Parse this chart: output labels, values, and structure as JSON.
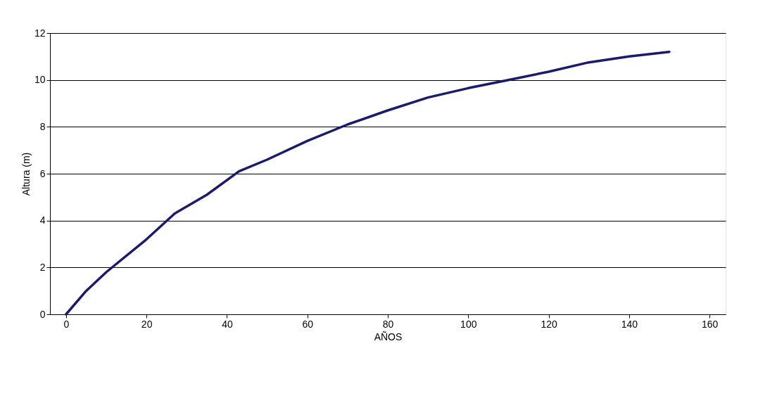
{
  "chart_data": {
    "type": "line",
    "xlabel": "AÑOS",
    "ylabel": "Altura (m)",
    "x": [
      0,
      5,
      10,
      20,
      27,
      35,
      43,
      50,
      60,
      70,
      80,
      90,
      100,
      110,
      120,
      130,
      140,
      150
    ],
    "series": [
      {
        "color": "#1a1a6e",
        "values": [
          0,
          1.0,
          1.8,
          3.2,
          4.3,
          5.1,
          6.1,
          6.6,
          7.4,
          8.1,
          8.7,
          9.25,
          9.65,
          10.0,
          10.35,
          10.75,
          11.0,
          11.2
        ]
      }
    ],
    "xlim": [
      -4,
      164
    ],
    "xticks": [
      0,
      20,
      40,
      60,
      80,
      100,
      120,
      140,
      160
    ],
    "ylim": [
      0,
      12
    ],
    "yticks": [
      0,
      2,
      4,
      6,
      8,
      10,
      12
    ],
    "grid": "y",
    "marker": "none",
    "line_style": "solid"
  }
}
